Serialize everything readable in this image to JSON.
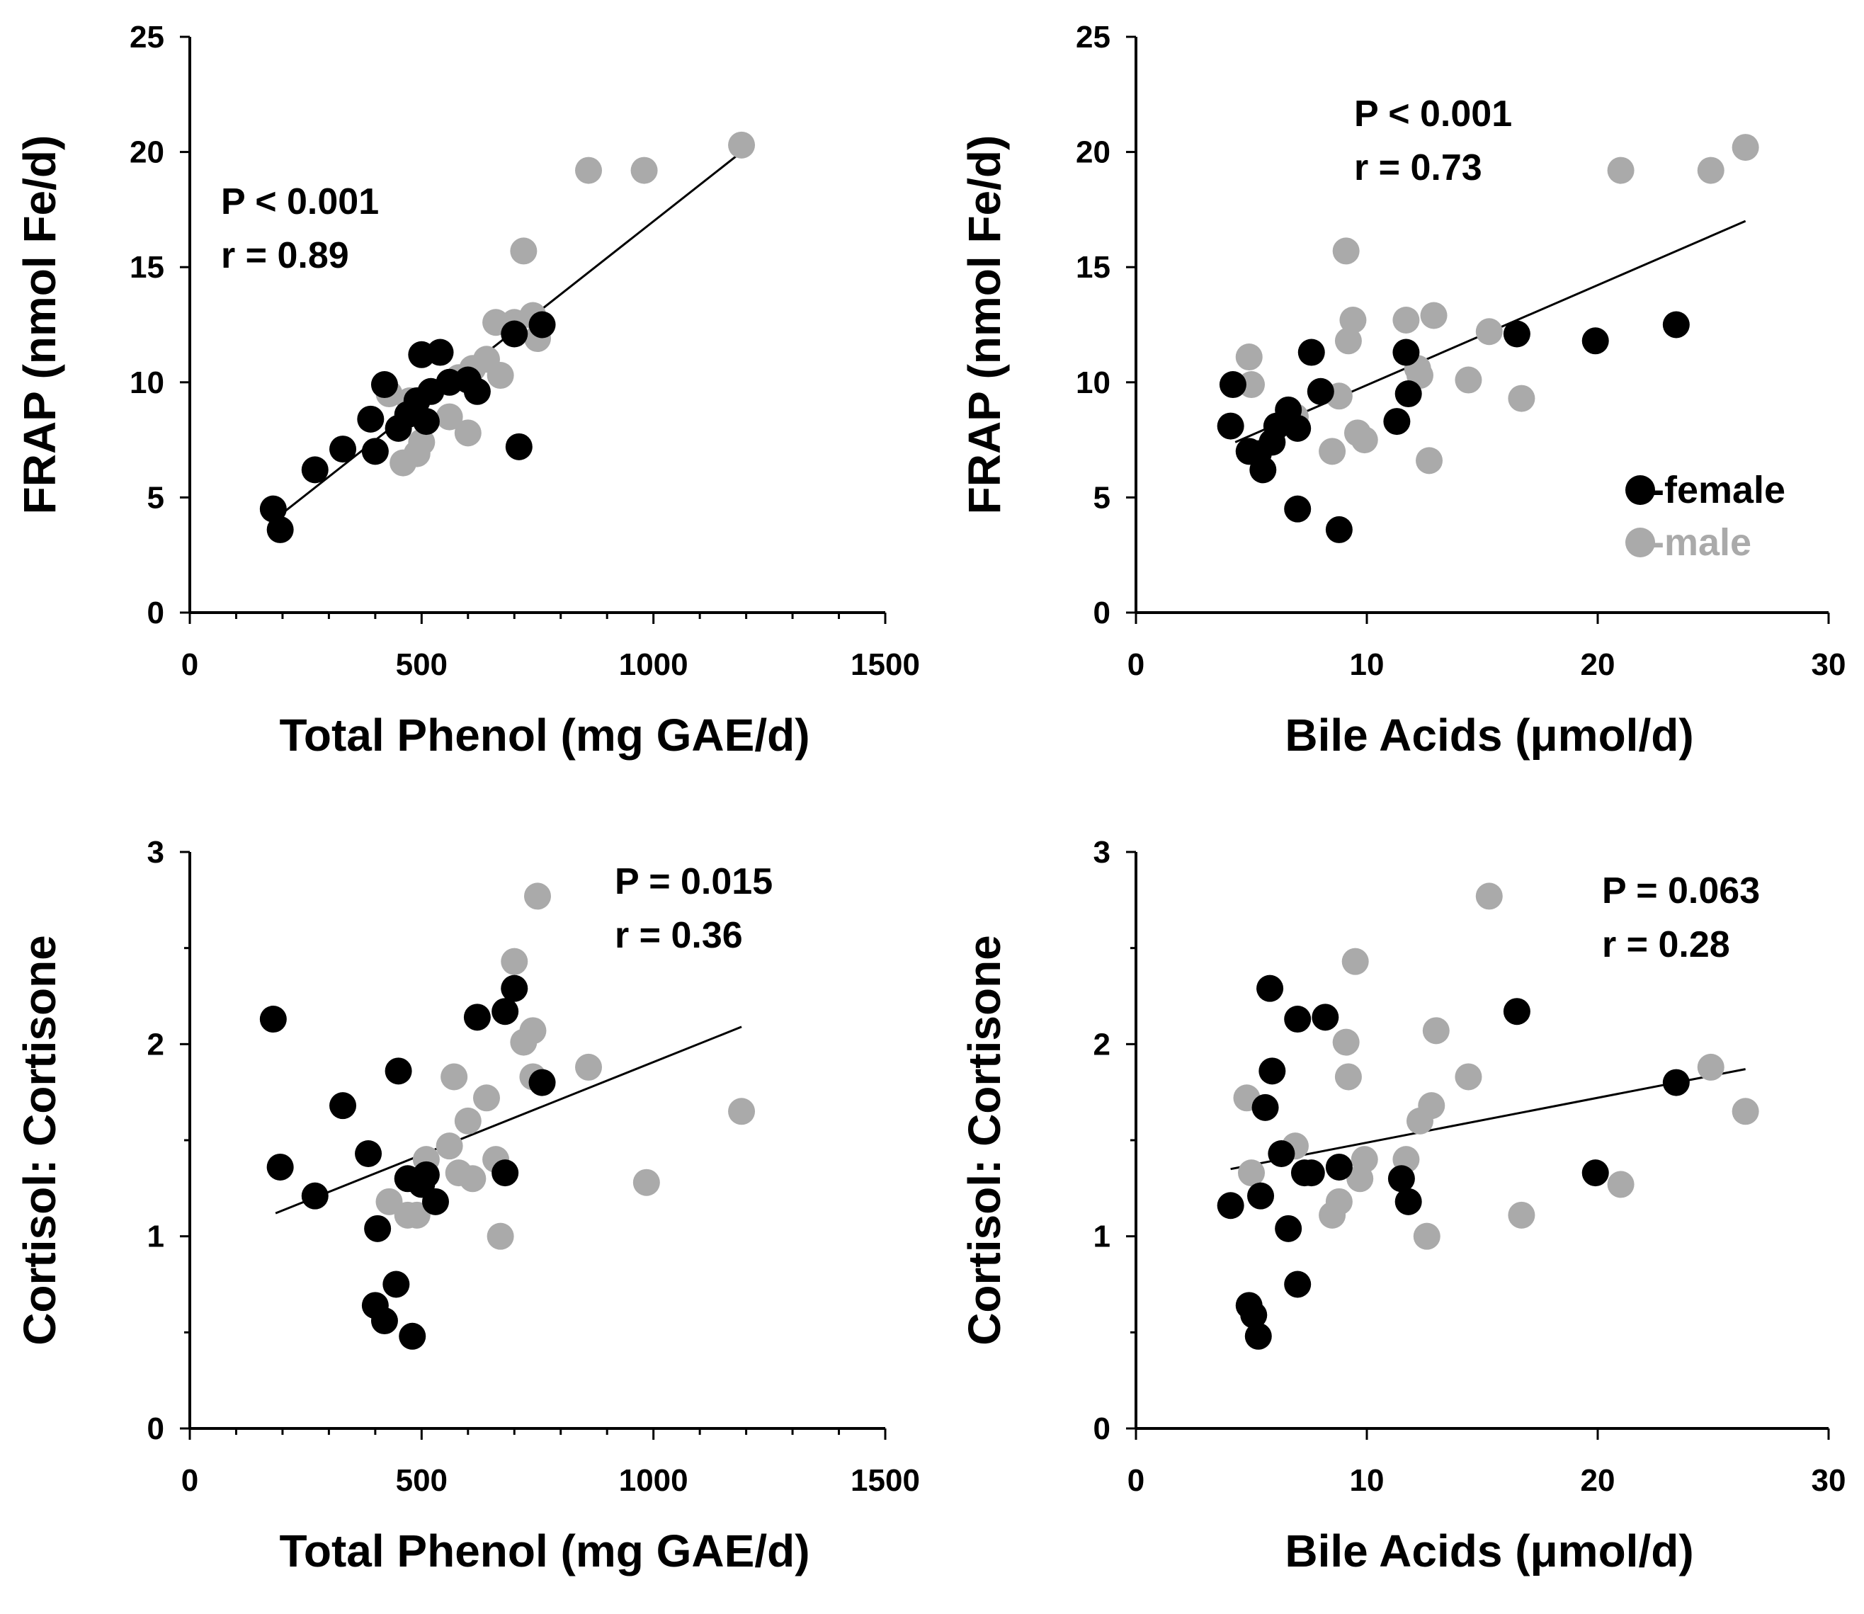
{
  "chart_data": [
    {
      "id": "p1",
      "type": "scatter",
      "xlabel": "Total Phenol (mg GAE/d)",
      "ylabel": "FRAP (nmol Fe/d)",
      "xlim": [
        0,
        1500
      ],
      "ylim": [
        0,
        25
      ],
      "xticks": [
        0,
        500,
        1000,
        1500
      ],
      "yticks": [
        0,
        5,
        10,
        15,
        20,
        25
      ],
      "x_minor_step": 100,
      "y_minor_step": null,
      "annotation": {
        "p": "P < 0.001",
        "r": "r = 0.89"
      },
      "fit_line": [
        [
          180,
          4.0
        ],
        [
          1190,
          20.0
        ]
      ],
      "series": [
        {
          "name": "-female",
          "color": "#000000",
          "points": [
            [
              180,
              4.5
            ],
            [
              195,
              3.6
            ],
            [
              270,
              6.2
            ],
            [
              330,
              7.1
            ],
            [
              390,
              8.4
            ],
            [
              400,
              7.0
            ],
            [
              420,
              9.9
            ],
            [
              450,
              8.0
            ],
            [
              470,
              8.6
            ],
            [
              490,
              9.2
            ],
            [
              500,
              11.2
            ],
            [
              510,
              8.3
            ],
            [
              520,
              9.6
            ],
            [
              540,
              11.3
            ],
            [
              560,
              10.0
            ],
            [
              600,
              10.1
            ],
            [
              620,
              9.6
            ],
            [
              700,
              12.1
            ],
            [
              710,
              7.2
            ],
            [
              760,
              12.5
            ]
          ]
        },
        {
          "name": "-male",
          "color": "#aaaaaa",
          "points": [
            [
              430,
              9.5
            ],
            [
              460,
              6.5
            ],
            [
              475,
              9.2
            ],
            [
              490,
              6.9
            ],
            [
              500,
              7.4
            ],
            [
              560,
              8.5
            ],
            [
              580,
              10.2
            ],
            [
              600,
              7.8
            ],
            [
              610,
              10.6
            ],
            [
              640,
              11.0
            ],
            [
              660,
              12.6
            ],
            [
              670,
              10.3
            ],
            [
              700,
              12.6
            ],
            [
              720,
              15.7
            ],
            [
              740,
              12.9
            ],
            [
              750,
              11.9
            ],
            [
              860,
              19.2
            ],
            [
              980,
              19.2
            ],
            [
              1190,
              20.3
            ]
          ]
        }
      ]
    },
    {
      "id": "p2",
      "type": "scatter",
      "xlabel": "Bile Acids (μmol/d)",
      "ylabel": "FRAP (nmol Fe/d)",
      "xlim": [
        0,
        30
      ],
      "ylim": [
        0,
        25
      ],
      "xticks": [
        0,
        10,
        20,
        30
      ],
      "yticks": [
        0,
        5,
        10,
        15,
        20,
        25
      ],
      "x_minor_step": null,
      "y_minor_step": null,
      "annotation": {
        "p": "P < 0.001",
        "r": "r = 0.73"
      },
      "fit_line": [
        [
          4.3,
          7.4
        ],
        [
          26.4,
          17.0
        ]
      ],
      "legend": {
        "position": "bottom-right"
      },
      "series": [
        {
          "name": "-female",
          "color": "#000000",
          "points": [
            [
              4.1,
              8.1
            ],
            [
              4.2,
              9.9
            ],
            [
              4.9,
              7.0
            ],
            [
              5.3,
              6.9
            ],
            [
              5.5,
              6.2
            ],
            [
              5.9,
              7.4
            ],
            [
              6.1,
              8.1
            ],
            [
              6.6,
              8.8
            ],
            [
              7.0,
              4.5
            ],
            [
              7.0,
              8.0
            ],
            [
              7.6,
              11.3
            ],
            [
              8.0,
              9.6
            ],
            [
              8.8,
              3.6
            ],
            [
              11.3,
              8.3
            ],
            [
              11.7,
              11.3
            ],
            [
              11.8,
              9.5
            ],
            [
              16.5,
              12.1
            ],
            [
              19.9,
              11.8
            ],
            [
              23.4,
              12.5
            ]
          ]
        },
        {
          "name": "-male",
          "color": "#aaaaaa",
          "points": [
            [
              4.9,
              11.1
            ],
            [
              5.0,
              9.9
            ],
            [
              6.6,
              8.6
            ],
            [
              6.9,
              8.5
            ],
            [
              8.5,
              7.0
            ],
            [
              8.8,
              9.4
            ],
            [
              9.1,
              15.7
            ],
            [
              9.2,
              11.8
            ],
            [
              9.4,
              12.7
            ],
            [
              9.6,
              7.8
            ],
            [
              9.9,
              7.5
            ],
            [
              11.7,
              12.7
            ],
            [
              12.2,
              10.6
            ],
            [
              12.3,
              10.3
            ],
            [
              12.7,
              6.6
            ],
            [
              12.9,
              12.9
            ],
            [
              14.4,
              10.1
            ],
            [
              15.3,
              12.2
            ],
            [
              16.7,
              9.3
            ],
            [
              21.0,
              19.2
            ],
            [
              24.9,
              19.2
            ],
            [
              26.4,
              20.2
            ]
          ]
        }
      ]
    },
    {
      "id": "p3",
      "type": "scatter",
      "xlabel": "Total Phenol (mg GAE/d)",
      "ylabel": "Cortisol: Cortisone",
      "xlim": [
        0,
        1500
      ],
      "ylim": [
        0,
        3
      ],
      "xticks": [
        0,
        500,
        1000,
        1500
      ],
      "yticks": [
        0,
        1,
        2,
        3
      ],
      "x_minor_step": 100,
      "y_minor_step": 0.5,
      "annotation": {
        "p": "P = 0.015",
        "r": "r = 0.36"
      },
      "fit_line": [
        [
          185,
          1.12
        ],
        [
          1190,
          2.09
        ]
      ],
      "series": [
        {
          "name": "-female",
          "color": "#000000",
          "points": [
            [
              180,
              2.13
            ],
            [
              195,
              1.36
            ],
            [
              270,
              1.21
            ],
            [
              330,
              1.68
            ],
            [
              385,
              1.43
            ],
            [
              400,
              0.64
            ],
            [
              405,
              1.04
            ],
            [
              420,
              0.56
            ],
            [
              445,
              0.75
            ],
            [
              450,
              1.86
            ],
            [
              470,
              1.3
            ],
            [
              480,
              0.48
            ],
            [
              500,
              1.27
            ],
            [
              510,
              1.32
            ],
            [
              530,
              1.18
            ],
            [
              620,
              2.14
            ],
            [
              680,
              2.17
            ],
            [
              680,
              1.33
            ],
            [
              700,
              2.29
            ],
            [
              760,
              1.8
            ]
          ]
        },
        {
          "name": "-male",
          "color": "#aaaaaa",
          "points": [
            [
              430,
              1.18
            ],
            [
              470,
              1.11
            ],
            [
              490,
              1.11
            ],
            [
              510,
              1.4
            ],
            [
              560,
              1.47
            ],
            [
              570,
              1.83
            ],
            [
              580,
              1.33
            ],
            [
              600,
              1.6
            ],
            [
              610,
              1.3
            ],
            [
              640,
              1.72
            ],
            [
              660,
              1.4
            ],
            [
              670,
              1.0
            ],
            [
              700,
              2.43
            ],
            [
              720,
              2.01
            ],
            [
              740,
              2.07
            ],
            [
              740,
              1.83
            ],
            [
              750,
              2.77
            ],
            [
              860,
              1.88
            ],
            [
              985,
              1.28
            ],
            [
              1190,
              1.65
            ]
          ]
        }
      ]
    },
    {
      "id": "p4",
      "type": "scatter",
      "xlabel": "Bile Acids (μmol/d)",
      "ylabel": "Cortisol: Cortisone",
      "xlim": [
        0,
        30
      ],
      "ylim": [
        0,
        3
      ],
      "xticks": [
        0,
        10,
        20,
        30
      ],
      "yticks": [
        0,
        1,
        2,
        3
      ],
      "x_minor_step": null,
      "y_minor_step": 0.5,
      "annotation": {
        "p": "P = 0.063",
        "r": "r = 0.28"
      },
      "fit_line": [
        [
          4.1,
          1.35
        ],
        [
          26.4,
          1.87
        ]
      ],
      "series": [
        {
          "name": "-female",
          "color": "#000000",
          "points": [
            [
              4.1,
              1.16
            ],
            [
              4.9,
              0.64
            ],
            [
              5.1,
              0.59
            ],
            [
              5.3,
              0.48
            ],
            [
              5.4,
              1.21
            ],
            [
              5.6,
              1.67
            ],
            [
              5.8,
              2.29
            ],
            [
              5.9,
              1.86
            ],
            [
              6.3,
              1.43
            ],
            [
              6.6,
              1.04
            ],
            [
              7.0,
              2.13
            ],
            [
              7.0,
              0.75
            ],
            [
              7.3,
              1.33
            ],
            [
              7.6,
              1.33
            ],
            [
              8.2,
              2.14
            ],
            [
              8.8,
              1.36
            ],
            [
              11.5,
              1.3
            ],
            [
              11.8,
              1.18
            ],
            [
              16.5,
              2.17
            ],
            [
              19.9,
              1.33
            ],
            [
              23.4,
              1.8
            ]
          ]
        },
        {
          "name": "-male",
          "color": "#aaaaaa",
          "points": [
            [
              4.8,
              1.72
            ],
            [
              5.0,
              1.33
            ],
            [
              6.9,
              1.47
            ],
            [
              8.5,
              1.11
            ],
            [
              8.8,
              1.18
            ],
            [
              9.1,
              2.01
            ],
            [
              9.2,
              1.83
            ],
            [
              9.5,
              2.43
            ],
            [
              9.7,
              1.3
            ],
            [
              9.9,
              1.4
            ],
            [
              11.7,
              1.4
            ],
            [
              12.3,
              1.6
            ],
            [
              12.6,
              1.0
            ],
            [
              12.8,
              1.68
            ],
            [
              13.0,
              2.07
            ],
            [
              14.4,
              1.83
            ],
            [
              15.3,
              2.77
            ],
            [
              21.0,
              1.27
            ],
            [
              24.9,
              1.88
            ],
            [
              26.4,
              1.65
            ],
            [
              16.7,
              1.11
            ]
          ]
        }
      ]
    }
  ]
}
